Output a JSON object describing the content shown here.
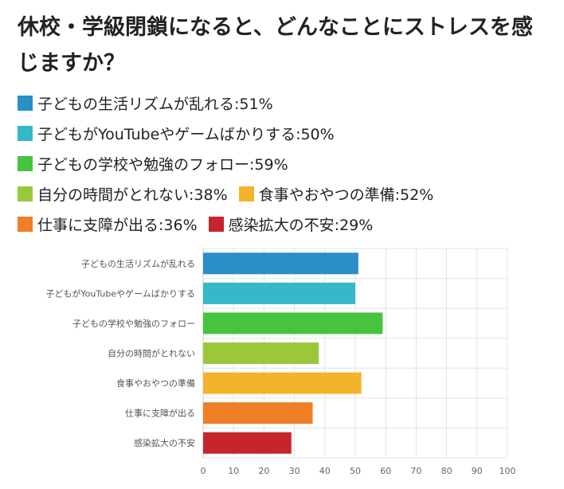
{
  "title": "休校・学級閉鎖になると、どんなことにストレスを感じますか？",
  "legend": [
    {
      "label": "子どもの生活リズムが乱れる:51%",
      "color": "#2a8ec7"
    },
    {
      "label": "子どもがYouTubeやゲームばかりする:50%",
      "color": "#35b8c8"
    },
    {
      "label": "子どもの学校や勉強のフォロー:59%",
      "color": "#47c43e"
    },
    {
      "label": "自分の時間がとれない:38%",
      "color": "#9bc83b"
    },
    {
      "label": "食事やおやつの準備:52%",
      "color": "#f3b42b"
    },
    {
      "label": "仕事に支障が出る:36%",
      "color": "#f07e24"
    },
    {
      "label": "感染拡大の不安:29%",
      "color": "#c5262e"
    }
  ],
  "chart_data": {
    "type": "bar",
    "orientation": "horizontal",
    "categories": [
      "子どもの生活リズムが乱れる",
      "子どもがYouTubeやゲームばかりする",
      "子どもの学校や勉強のフォロー",
      "自分の時間がとれない",
      "食事やおやつの準備",
      "仕事に支障が出る",
      "感染拡大の不安"
    ],
    "values": [
      51,
      50,
      59,
      38,
      52,
      36,
      29
    ],
    "colors": [
      "#2a8ec7",
      "#35b8c8",
      "#47c43e",
      "#9bc83b",
      "#f3b42b",
      "#f07e24",
      "#c5262e"
    ],
    "xlim": [
      0,
      100
    ],
    "xticks": [
      0,
      10,
      20,
      30,
      40,
      50,
      60,
      70,
      80,
      90,
      100
    ],
    "grid": true
  }
}
